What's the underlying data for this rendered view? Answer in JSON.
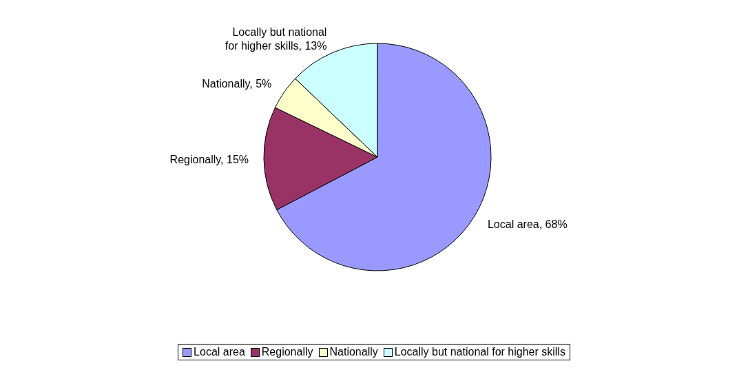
{
  "chart_data": {
    "type": "pie",
    "categories": [
      "Local area",
      "Regionally",
      "Nationally",
      "Locally but national for higher skills"
    ],
    "values": [
      68,
      15,
      5,
      13
    ],
    "colors": [
      "#9999ff",
      "#993366",
      "#ffffcc",
      "#ccffff"
    ],
    "value_labels": [
      "Local area, 68%",
      "Regionally, 15%",
      "Nationally, 5%",
      "Locally but national for higher skills, 13%"
    ],
    "legend": "bottom"
  }
}
